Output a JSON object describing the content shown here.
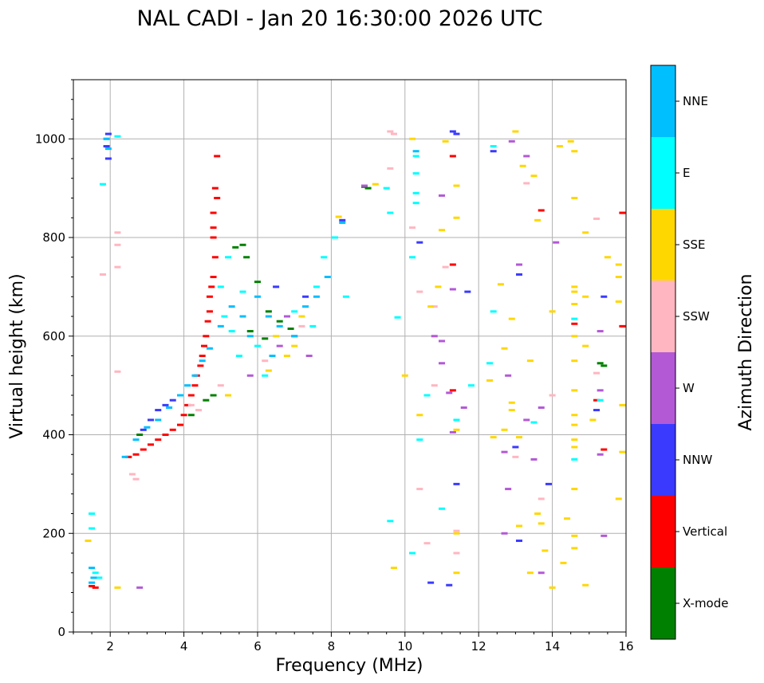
{
  "chart_data": {
    "type": "scatter",
    "title": "NAL CADI - Jan 20 16:30:00 2026 UTC",
    "xlabel": "Frequency (MHz)",
    "ylabel": "Virtual height (km)",
    "xlim": [
      1,
      16
    ],
    "ylim": [
      0,
      1120
    ],
    "xticks": [
      2,
      4,
      6,
      8,
      10,
      12,
      14,
      16
    ],
    "yticks": [
      0,
      200,
      400,
      600,
      800,
      1000
    ],
    "grid": true,
    "colorbar": {
      "label": "Azimuth Direction",
      "categories": [
        "X-mode",
        "Vertical",
        "NNW",
        "W",
        "SSW",
        "SSE",
        "E",
        "NNE"
      ],
      "colors": [
        "#008000",
        "#ff0000",
        "#3a3aff",
        "#b359d6",
        "#ffb6c1",
        "#ffd700",
        "#00ffff",
        "#00bfff"
      ]
    },
    "series": [
      {
        "name": "X-mode",
        "points": [
          [
            8.9,
            903
          ],
          [
            9.0,
            900
          ],
          [
            6.0,
            710
          ],
          [
            5.4,
            780
          ],
          [
            5.6,
            785
          ],
          [
            5.7,
            760
          ],
          [
            6.3,
            650
          ],
          [
            6.6,
            630
          ],
          [
            6.9,
            615
          ],
          [
            5.8,
            610
          ],
          [
            6.2,
            595
          ],
          [
            4.6,
            470
          ],
          [
            15.3,
            545
          ],
          [
            15.4,
            540
          ],
          [
            2.8,
            400
          ],
          [
            4.2,
            440
          ],
          [
            4.8,
            480
          ]
        ]
      },
      {
        "name": "Vertical",
        "points": [
          [
            4.9,
            965
          ],
          [
            4.85,
            900
          ],
          [
            4.9,
            880
          ],
          [
            4.8,
            850
          ],
          [
            4.8,
            820
          ],
          [
            4.8,
            800
          ],
          [
            4.85,
            760
          ],
          [
            4.8,
            720
          ],
          [
            4.75,
            700
          ],
          [
            4.7,
            680
          ],
          [
            4.7,
            650
          ],
          [
            4.65,
            630
          ],
          [
            4.6,
            600
          ],
          [
            4.55,
            580
          ],
          [
            4.5,
            560
          ],
          [
            4.45,
            540
          ],
          [
            4.35,
            520
          ],
          [
            4.3,
            500
          ],
          [
            4.2,
            480
          ],
          [
            4.1,
            460
          ],
          [
            4.0,
            440
          ],
          [
            3.9,
            420
          ],
          [
            3.7,
            410
          ],
          [
            3.5,
            400
          ],
          [
            3.3,
            390
          ],
          [
            3.1,
            380
          ],
          [
            2.9,
            370
          ],
          [
            2.7,
            360
          ],
          [
            2.5,
            355
          ],
          [
            11.3,
            965
          ],
          [
            11.3,
            745
          ],
          [
            11.3,
            490
          ],
          [
            13.7,
            855
          ],
          [
            15.9,
            850
          ],
          [
            14.6,
            625
          ],
          [
            15.9,
            620
          ],
          [
            15.2,
            470
          ],
          [
            15.4,
            370
          ],
          [
            1.5,
            93
          ],
          [
            1.6,
            90
          ]
        ]
      },
      {
        "name": "NNW",
        "points": [
          [
            1.95,
            1010
          ],
          [
            1.9,
            985
          ],
          [
            1.95,
            960
          ],
          [
            10.4,
            790
          ],
          [
            11.3,
            1015
          ],
          [
            11.4,
            1010
          ],
          [
            12.4,
            975
          ],
          [
            13.1,
            725
          ],
          [
            11.7,
            690
          ],
          [
            15.4,
            680
          ],
          [
            13.0,
            375
          ],
          [
            13.9,
            300
          ],
          [
            13.1,
            185
          ],
          [
            11.4,
            300
          ],
          [
            11.2,
            95
          ],
          [
            10.7,
            100
          ],
          [
            8.3,
            835
          ],
          [
            7.3,
            680
          ],
          [
            3.7,
            470
          ],
          [
            3.5,
            460
          ],
          [
            3.3,
            450
          ],
          [
            3.1,
            430
          ],
          [
            2.9,
            410
          ],
          [
            6.5,
            700
          ],
          [
            15.2,
            450
          ]
        ]
      },
      {
        "name": "W",
        "points": [
          [
            8.9,
            905
          ],
          [
            11.0,
            885
          ],
          [
            11.3,
            695
          ],
          [
            13.1,
            745
          ],
          [
            12.9,
            995
          ],
          [
            13.3,
            965
          ],
          [
            14.1,
            790
          ],
          [
            12.8,
            520
          ],
          [
            13.7,
            455
          ],
          [
            13.3,
            430
          ],
          [
            12.7,
            365
          ],
          [
            12.8,
            290
          ],
          [
            13.5,
            350
          ],
          [
            12.7,
            200
          ],
          [
            13.7,
            120
          ],
          [
            15.3,
            610
          ],
          [
            15.3,
            490
          ],
          [
            15.3,
            360
          ],
          [
            15.4,
            195
          ],
          [
            11.0,
            545
          ],
          [
            11.2,
            485
          ],
          [
            11.3,
            405
          ],
          [
            10.8,
            600
          ],
          [
            11.0,
            590
          ],
          [
            11.6,
            455
          ],
          [
            2.8,
            90
          ],
          [
            6.8,
            640
          ],
          [
            7.0,
            600
          ],
          [
            7.4,
            560
          ],
          [
            6.6,
            580
          ],
          [
            5.8,
            520
          ]
        ]
      },
      {
        "name": "SSW",
        "points": [
          [
            9.6,
            1015
          ],
          [
            9.7,
            1010
          ],
          [
            9.6,
            940
          ],
          [
            10.2,
            820
          ],
          [
            10.4,
            690
          ],
          [
            11.1,
            740
          ],
          [
            10.8,
            660
          ],
          [
            10.8,
            500
          ],
          [
            10.4,
            290
          ],
          [
            10.6,
            180
          ],
          [
            11.4,
            205
          ],
          [
            11.4,
            160
          ],
          [
            13.3,
            910
          ],
          [
            13.0,
            355
          ],
          [
            14.0,
            480
          ],
          [
            15.2,
            838
          ],
          [
            15.2,
            525
          ],
          [
            13.7,
            270
          ],
          [
            2.2,
            810
          ],
          [
            2.2,
            785
          ],
          [
            2.2,
            740
          ],
          [
            2.2,
            528
          ],
          [
            1.8,
            725
          ],
          [
            2.6,
            320
          ],
          [
            2.7,
            310
          ],
          [
            4.2,
            460
          ],
          [
            4.4,
            450
          ],
          [
            5.0,
            500
          ],
          [
            6.2,
            550
          ],
          [
            6.8,
            560
          ],
          [
            7.2,
            620
          ]
        ]
      },
      {
        "name": "SSE",
        "points": [
          [
            9.2,
            908
          ],
          [
            8.2,
            842
          ],
          [
            10.2,
            1000
          ],
          [
            11.1,
            995
          ],
          [
            11.4,
            905
          ],
          [
            11.4,
            840
          ],
          [
            11.0,
            815
          ],
          [
            10.9,
            700
          ],
          [
            10.7,
            660
          ],
          [
            10.0,
            520
          ],
          [
            10.4,
            440
          ],
          [
            11.4,
            410
          ],
          [
            12.6,
            705
          ],
          [
            12.9,
            635
          ],
          [
            12.3,
            510
          ],
          [
            12.7,
            575
          ],
          [
            12.9,
            465
          ],
          [
            12.9,
            450
          ],
          [
            12.7,
            410
          ],
          [
            12.4,
            395
          ],
          [
            13.1,
            395
          ],
          [
            13.1,
            215
          ],
          [
            13.4,
            550
          ],
          [
            13.6,
            835
          ],
          [
            13.0,
            1015
          ],
          [
            13.2,
            945
          ],
          [
            13.5,
            925
          ],
          [
            14.0,
            650
          ],
          [
            13.8,
            165
          ],
          [
            13.6,
            240
          ],
          [
            13.7,
            220
          ],
          [
            14.2,
            985
          ],
          [
            14.5,
            995
          ],
          [
            14.6,
            975
          ],
          [
            14.6,
            880
          ],
          [
            14.6,
            700
          ],
          [
            14.6,
            690
          ],
          [
            14.6,
            665
          ],
          [
            14.6,
            600
          ],
          [
            14.6,
            550
          ],
          [
            14.6,
            490
          ],
          [
            14.6,
            440
          ],
          [
            14.6,
            420
          ],
          [
            14.6,
            390
          ],
          [
            14.6,
            375
          ],
          [
            14.6,
            290
          ],
          [
            14.6,
            195
          ],
          [
            14.6,
            170
          ],
          [
            14.4,
            230
          ],
          [
            14.9,
            810
          ],
          [
            14.9,
            680
          ],
          [
            14.9,
            580
          ],
          [
            14.9,
            95
          ],
          [
            15.5,
            760
          ],
          [
            15.8,
            745
          ],
          [
            15.8,
            720
          ],
          [
            15.8,
            670
          ],
          [
            15.9,
            460
          ],
          [
            15.9,
            365
          ],
          [
            15.8,
            270
          ],
          [
            15.1,
            430
          ],
          [
            14.0,
            90
          ],
          [
            14.3,
            140
          ],
          [
            13.4,
            120
          ],
          [
            11.4,
            200
          ],
          [
            11.4,
            120
          ],
          [
            9.7,
            130
          ],
          [
            2.2,
            90
          ],
          [
            1.4,
            185
          ],
          [
            6.5,
            600
          ],
          [
            7.0,
            580
          ],
          [
            6.8,
            560
          ],
          [
            5.2,
            480
          ],
          [
            6.3,
            530
          ],
          [
            7.2,
            640
          ]
        ]
      },
      {
        "name": "E",
        "points": [
          [
            9.5,
            900
          ],
          [
            9.6,
            850
          ],
          [
            10.3,
            965
          ],
          [
            10.3,
            930
          ],
          [
            10.3,
            890
          ],
          [
            10.3,
            870
          ],
          [
            10.2,
            760
          ],
          [
            9.8,
            638
          ],
          [
            10.4,
            390
          ],
          [
            10.6,
            480
          ],
          [
            11.0,
            250
          ],
          [
            10.2,
            160
          ],
          [
            11.4,
            430
          ],
          [
            11.8,
            500
          ],
          [
            12.4,
            985
          ],
          [
            12.4,
            650
          ],
          [
            12.3,
            545
          ],
          [
            13.5,
            425
          ],
          [
            14.6,
            635
          ],
          [
            14.6,
            350
          ],
          [
            15.3,
            470
          ],
          [
            9.6,
            225
          ],
          [
            8.4,
            680
          ],
          [
            8.1,
            800
          ],
          [
            2.2,
            1005
          ],
          [
            1.9,
            1000
          ],
          [
            1.8,
            908
          ],
          [
            1.5,
            240
          ],
          [
            1.5,
            210
          ],
          [
            1.6,
            120
          ],
          [
            1.7,
            110
          ],
          [
            5.0,
            700
          ],
          [
            5.2,
            760
          ],
          [
            5.1,
            640
          ],
          [
            5.3,
            610
          ],
          [
            5.6,
            690
          ],
          [
            5.5,
            560
          ],
          [
            6.0,
            580
          ],
          [
            6.2,
            520
          ],
          [
            7.0,
            650
          ],
          [
            7.6,
            700
          ],
          [
            7.8,
            760
          ],
          [
            7.5,
            620
          ]
        ]
      },
      {
        "name": "NNE",
        "points": [
          [
            1.9,
            1000
          ],
          [
            1.95,
            980
          ],
          [
            1.5,
            130
          ],
          [
            1.55,
            110
          ],
          [
            1.5,
            100
          ],
          [
            10.3,
            975
          ],
          [
            8.3,
            830
          ],
          [
            2.4,
            355
          ],
          [
            2.7,
            390
          ],
          [
            3.0,
            415
          ],
          [
            3.3,
            430
          ],
          [
            3.6,
            455
          ],
          [
            3.9,
            480
          ],
          [
            4.1,
            500
          ],
          [
            4.3,
            520
          ],
          [
            4.5,
            550
          ],
          [
            4.7,
            575
          ],
          [
            5.0,
            620
          ],
          [
            5.3,
            660
          ],
          [
            5.6,
            640
          ],
          [
            6.0,
            680
          ],
          [
            6.3,
            640
          ],
          [
            6.6,
            620
          ],
          [
            7.0,
            600
          ],
          [
            7.3,
            660
          ],
          [
            7.6,
            680
          ],
          [
            7.9,
            720
          ],
          [
            5.8,
            600
          ],
          [
            6.4,
            560
          ]
        ]
      }
    ]
  }
}
